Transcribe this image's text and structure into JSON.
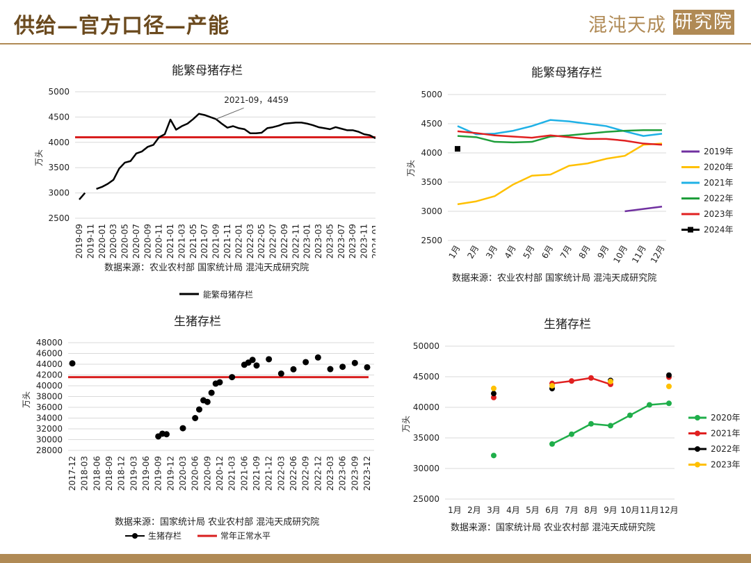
{
  "header": {
    "title": "供给—官方口径—产能",
    "logo_text": "混沌天成",
    "logo_box": "研究院"
  },
  "chart_data": [
    {
      "type": "line",
      "title": "能繁母猪存栏",
      "ylabel": "万头",
      "ylim": [
        2500,
        5000
      ],
      "yticks": [
        2500,
        3000,
        3500,
        4000,
        4500,
        5000
      ],
      "xlabels": [
        "2019-09",
        "2019-11",
        "2020-01",
        "2020-03",
        "2020-05",
        "2020-07",
        "2020-09",
        "2020-11",
        "2021-01",
        "2021-03",
        "2021-05",
        "2021-07",
        "2021-09",
        "2021-11",
        "2022-01",
        "2022-03",
        "2022-05",
        "2022-07",
        "2022-09",
        "2022-11",
        "2023-01",
        "2023-03",
        "2023-05",
        "2023-07",
        "2023-09",
        "2023-11",
        "2024-01"
      ],
      "series": [
        {
          "name": "能繁母猪存栏",
          "color": "#000000",
          "values": [
            2870,
            3000,
            null,
            3080,
            3120,
            3180,
            3260,
            3480,
            3600,
            3630,
            3780,
            3820,
            3910,
            3950,
            4100,
            4160,
            4450,
            4250,
            4320,
            4370,
            4460,
            4564,
            4540,
            4500,
            4459,
            4370,
            4290,
            4320,
            4280,
            4260,
            4180,
            4180,
            4190,
            4280,
            4300,
            4330,
            4370,
            4380,
            4390,
            4390,
            4370,
            4340,
            4300,
            4280,
            4260,
            4300,
            4270,
            4240,
            4240,
            4210,
            4160,
            4140,
            4080
          ]
        }
      ],
      "reference_line": {
        "value": 4100,
        "color": "#d81e1e"
      },
      "annotation": {
        "text": "2021-09，4459",
        "x_index": 24,
        "value": 4459
      },
      "source": "数据来源：农业农村部 国家统计局 混沌天成研究院",
      "legend_position": "bottom"
    },
    {
      "type": "line",
      "title": "能繁母猪存栏",
      "ylabel": "万头",
      "ylim": [
        2500,
        5000
      ],
      "yticks": [
        2500,
        3000,
        3500,
        4000,
        4500,
        5000
      ],
      "categories": [
        "1月",
        "2月",
        "3月",
        "4月",
        "5月",
        "6月",
        "7月",
        "8月",
        "9月",
        "10月",
        "11月",
        "12月"
      ],
      "series": [
        {
          "name": "2019年",
          "color": "#7030a0",
          "values": [
            null,
            null,
            null,
            null,
            null,
            null,
            null,
            null,
            null,
            3000,
            3040,
            3080
          ]
        },
        {
          "name": "2020年",
          "color": "#ffc000",
          "values": [
            3120,
            3170,
            3260,
            3460,
            3610,
            3630,
            3780,
            3820,
            3900,
            3950,
            4140,
            4160
          ]
        },
        {
          "name": "2021年",
          "color": "#1fb1e6",
          "values": [
            4460,
            4320,
            4330,
            4380,
            4460,
            4564,
            4540,
            4500,
            4459,
            4370,
            4290,
            4329
          ]
        },
        {
          "name": "2022年",
          "color": "#1e9e3a",
          "values": [
            4290,
            4270,
            4190,
            4180,
            4190,
            4280,
            4300,
            4330,
            4360,
            4380,
            4390,
            4390
          ]
        },
        {
          "name": "2023年",
          "color": "#e02020",
          "values": [
            4370,
            4340,
            4300,
            4280,
            4260,
            4300,
            4270,
            4240,
            4240,
            4210,
            4160,
            4140
          ]
        },
        {
          "name": "2024年",
          "color": "#000000",
          "values": [
            4070,
            null,
            null,
            null,
            null,
            null,
            null,
            null,
            null,
            null,
            null,
            null
          ]
        }
      ],
      "source": "数据来源：农业农村部 国家统计局 混沌天成研究院",
      "legend_position": "right"
    },
    {
      "type": "scatter",
      "title": "生猪存栏",
      "ylabel": "万头",
      "ylim": [
        28000,
        48000
      ],
      "yticks": [
        28000,
        30000,
        32000,
        34000,
        36000,
        38000,
        40000,
        42000,
        44000,
        46000,
        48000
      ],
      "xlabels": [
        "2017-12",
        "2018-03",
        "2018-06",
        "2018-09",
        "2018-12",
        "2019-03",
        "2019-06",
        "2019-09",
        "2019-12",
        "2020-03",
        "2020-06",
        "2020-09",
        "2020-12",
        "2021-03",
        "2021-06",
        "2021-09",
        "2021-12",
        "2022-03",
        "2022-06",
        "2022-09",
        "2022-12",
        "2023-03",
        "2023-06",
        "2023-09",
        "2023-12"
      ],
      "points": [
        {
          "x": 0,
          "y": 44158
        },
        {
          "x": 7,
          "y": 30600
        },
        {
          "x": 7.33,
          "y": 31100
        },
        {
          "x": 7.67,
          "y": 31000
        },
        {
          "x": 9,
          "y": 32120
        },
        {
          "x": 10,
          "y": 34000
        },
        {
          "x": 10.33,
          "y": 35600
        },
        {
          "x": 10.67,
          "y": 37300
        },
        {
          "x": 11,
          "y": 37000
        },
        {
          "x": 11.33,
          "y": 38700
        },
        {
          "x": 11.67,
          "y": 40400
        },
        {
          "x": 12,
          "y": 40650
        },
        {
          "x": 13,
          "y": 41600
        },
        {
          "x": 14,
          "y": 43900
        },
        {
          "x": 14.33,
          "y": 44300
        },
        {
          "x": 14.67,
          "y": 44800
        },
        {
          "x": 15,
          "y": 43764
        },
        {
          "x": 16,
          "y": 44922
        },
        {
          "x": 17,
          "y": 42253
        },
        {
          "x": 18,
          "y": 43057
        },
        {
          "x": 19,
          "y": 44394
        },
        {
          "x": 20,
          "y": 45256
        },
        {
          "x": 21,
          "y": 43094
        },
        {
          "x": 22,
          "y": 43517
        },
        {
          "x": 23,
          "y": 44229
        },
        {
          "x": 24,
          "y": 43422
        }
      ],
      "series": [
        {
          "name": "生猪存栏",
          "color": "#000000"
        },
        {
          "name": "常年正常水平",
          "color": "#d81e1e"
        }
      ],
      "reference_line": {
        "value": 41600,
        "color": "#d81e1e"
      },
      "source": "数据来源：国家统计局 农业农村部 混沌天成研究院",
      "legend_position": "bottom"
    },
    {
      "type": "line",
      "title": "生猪存栏",
      "ylabel": "万头",
      "ylim": [
        25000,
        50000
      ],
      "yticks": [
        25000,
        30000,
        35000,
        40000,
        45000,
        50000
      ],
      "categories": [
        "1月",
        "2月",
        "3月",
        "4月",
        "5月",
        "6月",
        "7月",
        "8月",
        "9月",
        "10月",
        "11月",
        "12月"
      ],
      "series": [
        {
          "name": "2020年",
          "color": "#1fae4a",
          "values": [
            null,
            null,
            32120,
            null,
            null,
            34000,
            35600,
            37300,
            37000,
            38700,
            40400,
            40650
          ]
        },
        {
          "name": "2021年",
          "color": "#e02020",
          "values": [
            null,
            null,
            41600,
            null,
            null,
            43900,
            44300,
            44800,
            43764,
            null,
            null,
            44922
          ]
        },
        {
          "name": "2022年",
          "color": "#000000",
          "values": [
            null,
            null,
            42253,
            null,
            null,
            43057,
            null,
            null,
            44394,
            null,
            null,
            45256
          ]
        },
        {
          "name": "2023年",
          "color": "#ffc000",
          "values": [
            null,
            null,
            43094,
            null,
            null,
            43517,
            null,
            null,
            44229,
            null,
            null,
            43422
          ]
        }
      ],
      "source": "数据来源：国家统计局 农业农村部 混沌天成研究院",
      "legend_position": "right"
    }
  ]
}
